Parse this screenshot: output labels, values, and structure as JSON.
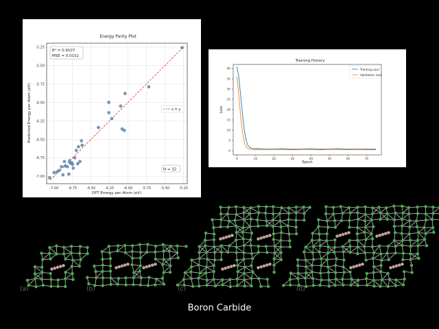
{
  "caption": "Boron Carbide",
  "chart_data": [
    {
      "type": "scatter",
      "title": "Energy Parity Plot",
      "xlabel": "DFT Energy per Atom (eV)",
      "ylabel": "Predicted Energy per Atom (eV)",
      "xlim": [
        -7.1,
        -5.2
      ],
      "ylim": [
        -7.1,
        -5.2
      ],
      "xticks": [
        "-7.00",
        "-6.75",
        "-6.50",
        "-6.25",
        "-6.00",
        "-5.75",
        "-5.50",
        "-5.25"
      ],
      "yticks": [
        "-5.25",
        "-5.50",
        "-5.75",
        "-6.00",
        "-6.25",
        "-6.50",
        "-6.75",
        "-7.00"
      ],
      "grid": true,
      "stats_box": {
        "r2": "R² = 0.9107",
        "mse": "MSE = 0.0152"
      },
      "count_label": "N = 32",
      "legend": "x = y",
      "legend_position": "right",
      "point_color": "#5b8db8",
      "line_color": "#e3242b",
      "points": [
        {
          "x": -7.06,
          "y": -7.02
        },
        {
          "x": -7.0,
          "y": -6.95
        },
        {
          "x": -6.96,
          "y": -6.94
        },
        {
          "x": -6.93,
          "y": -6.92
        },
        {
          "x": -6.9,
          "y": -6.87
        },
        {
          "x": -6.88,
          "y": -6.98
        },
        {
          "x": -6.86,
          "y": -6.8
        },
        {
          "x": -6.85,
          "y": -6.86
        },
        {
          "x": -6.82,
          "y": -6.87
        },
        {
          "x": -6.8,
          "y": -6.97
        },
        {
          "x": -6.79,
          "y": -6.79
        },
        {
          "x": -6.78,
          "y": -6.82
        },
        {
          "x": -6.76,
          "y": -6.82
        },
        {
          "x": -6.75,
          "y": -6.84
        },
        {
          "x": -6.74,
          "y": -6.89
        },
        {
          "x": -6.72,
          "y": -6.75
        },
        {
          "x": -6.7,
          "y": -6.65
        },
        {
          "x": -6.68,
          "y": -6.83
        },
        {
          "x": -6.67,
          "y": -6.6
        },
        {
          "x": -6.65,
          "y": -6.8
        },
        {
          "x": -6.63,
          "y": -6.52
        },
        {
          "x": -6.4,
          "y": -6.34
        },
        {
          "x": -6.26,
          "y": -6.0
        },
        {
          "x": -6.26,
          "y": -6.14
        },
        {
          "x": -6.22,
          "y": -6.22
        },
        {
          "x": -6.1,
          "y": -6.05
        },
        {
          "x": -6.08,
          "y": -6.36
        },
        {
          "x": -6.05,
          "y": -6.38
        },
        {
          "x": -6.04,
          "y": -5.88
        },
        {
          "x": -5.72,
          "y": -5.79
        },
        {
          "x": -5.27,
          "y": -5.26
        },
        {
          "x": -6.62,
          "y": -6.58
        }
      ]
    },
    {
      "type": "line",
      "title": "Training History",
      "xlabel": "Epoch",
      "ylabel": "Loss",
      "xlim": [
        -2,
        78
      ],
      "ylim": [
        -2,
        42
      ],
      "xticks": [
        "0",
        "10",
        "20",
        "30",
        "40",
        "50",
        "60",
        "70"
      ],
      "yticks": [
        "0",
        "5",
        "10",
        "15",
        "20",
        "25",
        "30",
        "35",
        "40"
      ],
      "legend_position": "top-right",
      "series": [
        {
          "name": "Training Loss",
          "color": "#1f77b4",
          "x": [
            0,
            1,
            2,
            3,
            4,
            5,
            6,
            7,
            8,
            9,
            10,
            12,
            15,
            20,
            25,
            30,
            35,
            40,
            45,
            50,
            55,
            60,
            65,
            70,
            75
          ],
          "values": [
            41,
            36,
            27,
            18,
            10,
            5,
            2.5,
            1.6,
            1.2,
            1.1,
            1.0,
            1.0,
            0.9,
            0.9,
            1.0,
            0.8,
            0.9,
            1.0,
            0.8,
            0.9,
            1.0,
            0.8,
            0.9,
            0.9,
            0.8
          ]
        },
        {
          "name": "Validation Loss",
          "color": "#ff7f0e",
          "x": [
            0,
            1,
            2,
            3,
            4,
            5,
            6,
            7,
            8,
            9,
            10,
            12,
            15,
            20,
            25,
            30,
            35,
            40,
            45,
            50,
            55,
            60,
            65,
            70,
            75
          ],
          "values": [
            36,
            27,
            17,
            9,
            4,
            2,
            1.0,
            0.8,
            0.7,
            0.6,
            0.6,
            0.6,
            0.6,
            0.6,
            0.6,
            0.5,
            0.6,
            0.6,
            0.5,
            0.6,
            0.6,
            0.5,
            0.6,
            0.5,
            0.5
          ]
        }
      ]
    }
  ],
  "structures": {
    "labels": [
      "(a)",
      "(b)",
      "(c)",
      "(d)"
    ]
  }
}
